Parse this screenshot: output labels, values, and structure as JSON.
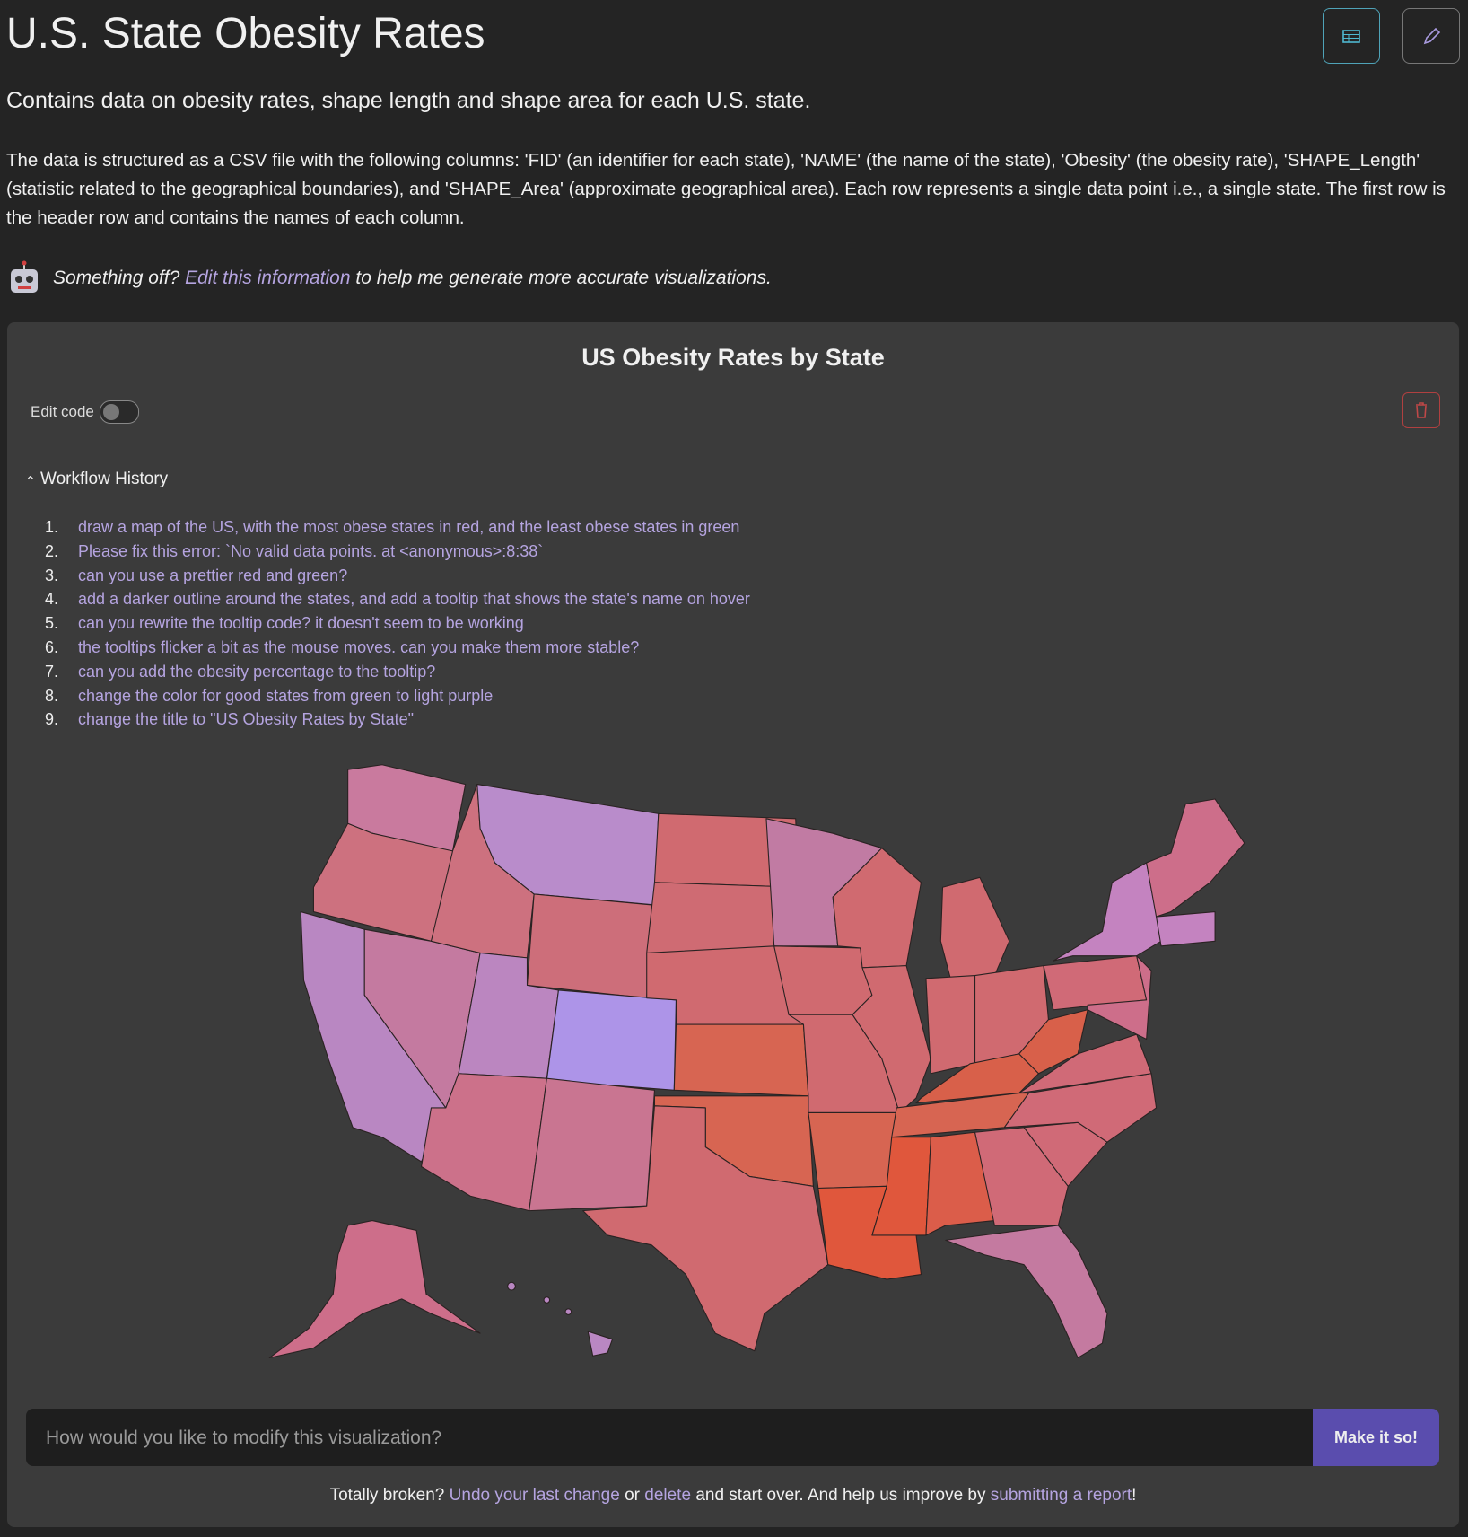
{
  "header": {
    "title": "U.S. State Obesity Rates",
    "subtitle": "Contains data on obesity rates, shape length and shape area for each U.S. state.",
    "description": "The data is structured as a CSV file with the following columns: 'FID' (an identifier for each state), 'NAME' (the name of the state), 'Obesity' (the obesity rate), 'SHAPE_Length' (statistic related to the geographical boundaries), and 'SHAPE_Area' (approximate geographical area). Each row represents a single data point i.e., a single state. The first row is the header row and contains the names of each column.",
    "note": {
      "lead": "Something off?",
      "link": "Edit this information",
      "rest": "to help me generate more accurate visualizations."
    }
  },
  "panel": {
    "title": "US Obesity Rates by State",
    "edit_code": "Edit code",
    "workflow_title": "Workflow History",
    "workflow": [
      {
        "number": "1.",
        "text": "draw a map of the US, with the most obese states in red, and the least obese states in green"
      },
      {
        "number": "2.",
        "text": "Please fix this error: `No valid data points. at <anonymous>:8:38`"
      },
      {
        "number": "3.",
        "text": "can you use a prettier red and green?"
      },
      {
        "number": "4.",
        "text": "add a darker outline around the states, and add a tooltip that shows the state's name on hover"
      },
      {
        "number": "5.",
        "text": "can you rewrite the tooltip code? it doesn't seem to be working"
      },
      {
        "number": "6.",
        "text": "the tooltips flicker a bit as the mouse moves. can you make them more stable?"
      },
      {
        "number": "7.",
        "text": "can you add the obesity percentage to the tooltip?"
      },
      {
        "number": "8.",
        "text": "change the color for good states from green to light purple"
      },
      {
        "number": "9.",
        "text": "change the title to \"US Obesity Rates by State\""
      }
    ],
    "input_placeholder": "How would you like to modify this visualization?",
    "submit": "Make it so!",
    "footer": {
      "a": "Totally broken?",
      "undo": "Undo your last change",
      "b": "or",
      "delete": "delete",
      "c": "and start over. And help us improve by",
      "report": "submitting a report",
      "d": "!"
    }
  }
}
